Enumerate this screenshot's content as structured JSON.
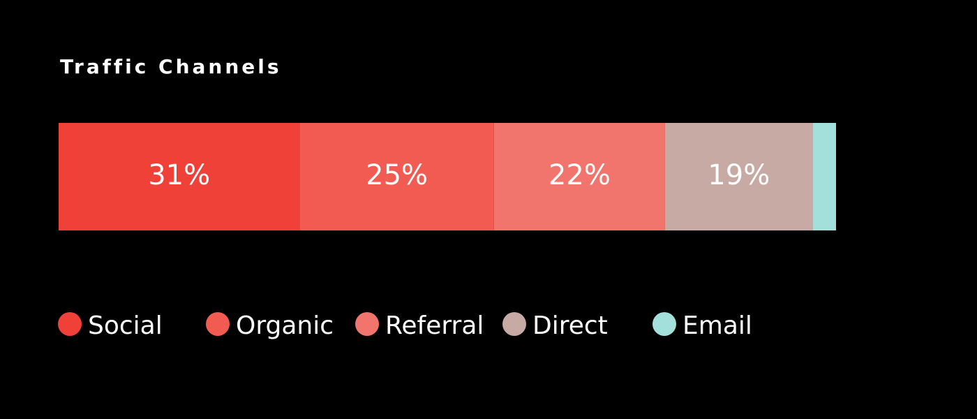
{
  "chart_data": {
    "type": "stacked-bar",
    "orientation": "horizontal",
    "title": "Traffic Channels",
    "xlim": [
      0,
      100
    ],
    "series": [
      {
        "name": "Social",
        "color": "#f04138",
        "values": [
          31
        ],
        "value_labels": [
          "31%"
        ]
      },
      {
        "name": "Organic",
        "color": "#f25b52",
        "values": [
          25
        ],
        "value_labels": [
          "25%"
        ]
      },
      {
        "name": "Referral",
        "color": "#f2756d",
        "values": [
          22
        ],
        "value_labels": [
          "22%"
        ]
      },
      {
        "name": "Direct",
        "color": "#c7aaa4",
        "values": [
          19
        ],
        "value_labels": [
          "19%"
        ]
      },
      {
        "name": "Email",
        "color": "#a3e0dc",
        "values": [
          3
        ]
      }
    ]
  }
}
